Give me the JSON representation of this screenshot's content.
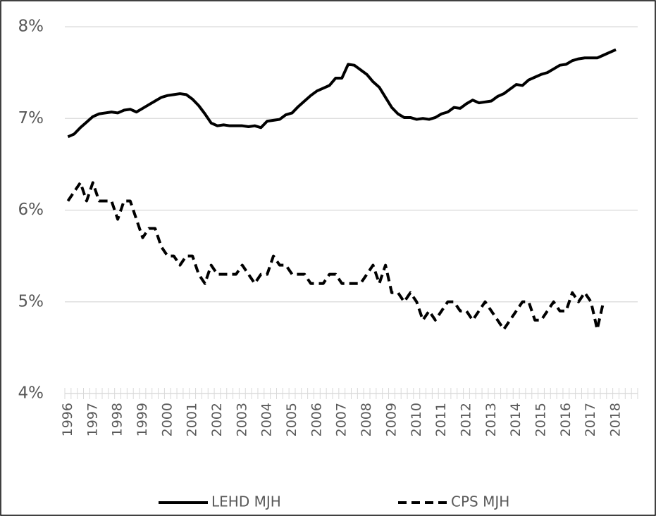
{
  "chart_data": {
    "type": "line",
    "categories": [
      "1996",
      null,
      null,
      null,
      "1997",
      null,
      null,
      null,
      "1998",
      null,
      null,
      null,
      "1999",
      null,
      null,
      null,
      "2000",
      null,
      null,
      null,
      "2001",
      null,
      null,
      null,
      "2002",
      null,
      null,
      null,
      "2003",
      null,
      null,
      null,
      "2004",
      null,
      null,
      null,
      "2005",
      null,
      null,
      null,
      "2006",
      null,
      null,
      null,
      "2007",
      null,
      null,
      null,
      "2008",
      null,
      null,
      null,
      "2009",
      null,
      null,
      null,
      "2010",
      null,
      null,
      null,
      "2011",
      null,
      null,
      null,
      "2012",
      null,
      null,
      null,
      "2013",
      null,
      null,
      null,
      "2014",
      null,
      null,
      null,
      "2015",
      null,
      null,
      null,
      "2016",
      null,
      null,
      null,
      "2017",
      null,
      null,
      null,
      "2018",
      null,
      null,
      null
    ],
    "series": [
      {
        "name": "LEHD MJH",
        "color": "#000000",
        "dash": false,
        "values": [
          6.8,
          6.83,
          6.9,
          6.96,
          7.02,
          7.05,
          7.06,
          7.07,
          7.06,
          7.09,
          7.1,
          7.07,
          7.11,
          7.15,
          7.19,
          7.23,
          7.25,
          7.26,
          7.27,
          7.26,
          7.21,
          7.14,
          7.05,
          6.95,
          6.92,
          6.93,
          6.92,
          6.92,
          6.92,
          6.91,
          6.92,
          6.9,
          6.97,
          6.98,
          6.99,
          7.04,
          7.06,
          7.13,
          7.19,
          7.25,
          7.3,
          7.33,
          7.36,
          7.44,
          7.44,
          7.59,
          7.58,
          7.53,
          7.48,
          7.4,
          7.34,
          7.23,
          7.12,
          7.05,
          7.01,
          7.01,
          6.99,
          7.0,
          6.99,
          7.01,
          7.05,
          7.07,
          7.12,
          7.11,
          7.16,
          7.2,
          7.17,
          7.18,
          7.19,
          7.24,
          7.27,
          7.32,
          7.37,
          7.36,
          7.42,
          7.45,
          7.48,
          7.5,
          7.54,
          7.58,
          7.59,
          7.63,
          7.65,
          7.66,
          7.66,
          7.66,
          7.69,
          7.72,
          7.75,
          null,
          null,
          null
        ]
      },
      {
        "name": "CPS MJH",
        "color": "#000000",
        "dash": true,
        "values": [
          6.1,
          6.2,
          6.3,
          6.1,
          6.3,
          6.1,
          6.1,
          6.1,
          5.9,
          6.1,
          6.1,
          5.9,
          5.7,
          5.8,
          5.8,
          5.6,
          5.5,
          5.5,
          5.4,
          5.5,
          5.5,
          5.3,
          5.2,
          5.4,
          5.3,
          5.3,
          5.3,
          5.3,
          5.4,
          5.3,
          5.2,
          5.3,
          5.3,
          5.5,
          5.4,
          5.4,
          5.3,
          5.3,
          5.3,
          5.2,
          5.2,
          5.2,
          5.3,
          5.3,
          5.2,
          5.2,
          5.2,
          5.2,
          5.3,
          5.4,
          5.2,
          5.4,
          5.1,
          5.1,
          5.0,
          5.1,
          5.0,
          4.8,
          4.9,
          4.8,
          4.9,
          5.0,
          5.0,
          4.9,
          4.9,
          4.8,
          4.9,
          5.0,
          4.9,
          4.8,
          4.7,
          4.8,
          4.9,
          5.0,
          5.0,
          4.8,
          4.8,
          4.9,
          5.0,
          4.9,
          4.9,
          5.1,
          5.0,
          5.1,
          5.0,
          4.7,
          5.0,
          null,
          null,
          null,
          null,
          null
        ]
      }
    ],
    "ylim": [
      4,
      8
    ],
    "yticks": [
      {
        "value": 4,
        "label": "4%"
      },
      {
        "value": 5,
        "label": "5%"
      },
      {
        "value": 6,
        "label": "6%"
      },
      {
        "value": 7,
        "label": "7%"
      },
      {
        "value": 8,
        "label": "8%"
      }
    ],
    "grid": true,
    "legend": "bottom"
  }
}
